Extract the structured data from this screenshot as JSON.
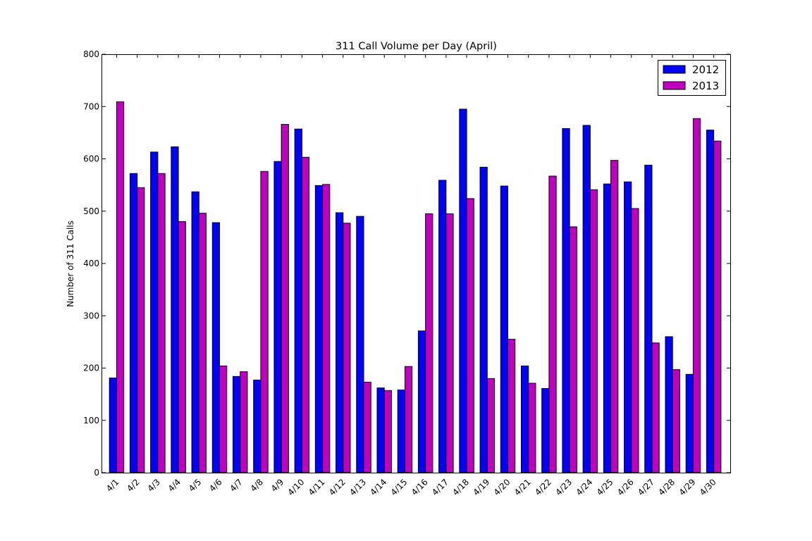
{
  "chart_data": {
    "type": "bar",
    "title": "311 Call Volume per Day (April)",
    "xlabel": "",
    "ylabel": "Number of 311 Calls",
    "ylim": [
      0,
      800
    ],
    "yticks": [
      0,
      100,
      200,
      300,
      400,
      500,
      600,
      700,
      800
    ],
    "grid": false,
    "legend_position": "top-right",
    "categories": [
      "4/1",
      "4/2",
      "4/3",
      "4/4",
      "4/5",
      "4/6",
      "4/7",
      "4/8",
      "4/9",
      "4/10",
      "4/11",
      "4/12",
      "4/13",
      "4/14",
      "4/15",
      "4/16",
      "4/17",
      "4/18",
      "4/19",
      "4/20",
      "4/21",
      "4/22",
      "4/23",
      "4/24",
      "4/25",
      "4/26",
      "4/27",
      "4/28",
      "4/29",
      "4/30"
    ],
    "series": [
      {
        "name": "2012",
        "color": "#0000ff",
        "values": [
          181,
          572,
          613,
          623,
          537,
          478,
          184,
          177,
          595,
          657,
          549,
          497,
          490,
          162,
          158,
          271,
          559,
          695,
          584,
          548,
          204,
          161,
          658,
          664,
          552,
          556,
          588,
          260,
          188,
          655
        ]
      },
      {
        "name": "2013",
        "color": "#bf00bf",
        "values": [
          709,
          545,
          572,
          480,
          496,
          204,
          193,
          576,
          666,
          603,
          551,
          477,
          173,
          157,
          203,
          495,
          495,
          524,
          180,
          255,
          171,
          567,
          470,
          541,
          597,
          505,
          248,
          197,
          677,
          634
        ]
      }
    ]
  }
}
